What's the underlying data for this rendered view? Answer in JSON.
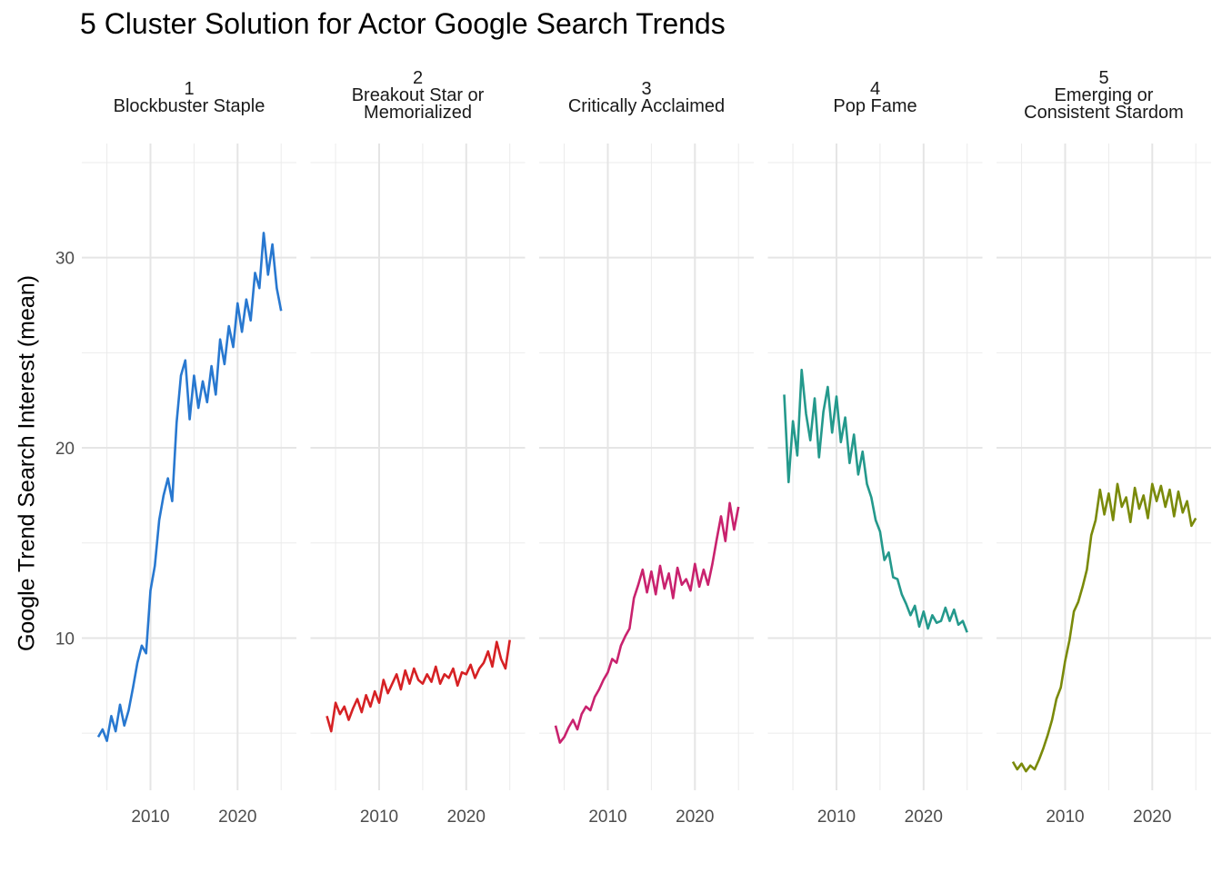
{
  "chart_data": {
    "type": "line",
    "title": "5 Cluster Solution for Actor Google Search Trends",
    "xlabel": "",
    "ylabel": "Google Trend Search Interest (mean)",
    "xlim": [
      2004,
      2025.5
    ],
    "ylim": [
      2,
      36
    ],
    "x_ticks": [
      2010,
      2020
    ],
    "y_ticks": [
      10,
      20,
      30
    ],
    "grid": true,
    "legend": "none",
    "panels": [
      {
        "strip_lines": [
          "1",
          "Blockbuster Staple"
        ],
        "color": "#2878D0",
        "series": {
          "x": [
            2004.0,
            2004.5,
            2005.0,
            2005.5,
            2006.0,
            2006.5,
            2007.0,
            2007.5,
            2008.0,
            2008.5,
            2009.0,
            2009.5,
            2010.0,
            2010.5,
            2011.0,
            2011.5,
            2012.0,
            2012.5,
            2013.0,
            2013.5,
            2014.0,
            2014.5,
            2015.0,
            2015.5,
            2016.0,
            2016.5,
            2017.0,
            2017.5,
            2018.0,
            2018.5,
            2019.0,
            2019.5,
            2020.0,
            2020.5,
            2021.0,
            2021.5,
            2022.0,
            2022.5,
            2023.0,
            2023.5,
            2024.0,
            2024.5,
            2025.0
          ],
          "values": [
            4.8,
            5.2,
            4.6,
            5.9,
            5.1,
            6.5,
            5.4,
            6.2,
            7.4,
            8.7,
            9.6,
            9.2,
            12.5,
            13.8,
            16.2,
            17.5,
            18.4,
            17.2,
            21.3,
            23.8,
            24.6,
            21.5,
            23.8,
            22.1,
            23.5,
            22.4,
            24.3,
            22.8,
            25.7,
            24.4,
            26.4,
            25.3,
            27.6,
            26.1,
            27.8,
            26.7,
            29.2,
            28.4,
            31.3,
            29.1,
            30.7,
            28.4,
            27.2
          ]
        }
      },
      {
        "strip_lines": [
          "2",
          "Breakout Star or",
          "Memorialized"
        ],
        "color": "#D62124",
        "series": {
          "x": [
            2004.0,
            2004.5,
            2005.0,
            2005.5,
            2006.0,
            2006.5,
            2007.0,
            2007.5,
            2008.0,
            2008.5,
            2009.0,
            2009.5,
            2010.0,
            2010.5,
            2011.0,
            2011.5,
            2012.0,
            2012.5,
            2013.0,
            2013.5,
            2014.0,
            2014.5,
            2015.0,
            2015.5,
            2016.0,
            2016.5,
            2017.0,
            2017.5,
            2018.0,
            2018.5,
            2019.0,
            2019.5,
            2020.0,
            2020.5,
            2021.0,
            2021.5,
            2022.0,
            2022.5,
            2023.0,
            2023.5,
            2024.0,
            2024.5,
            2025.0
          ],
          "values": [
            5.9,
            5.1,
            6.6,
            6.0,
            6.4,
            5.7,
            6.3,
            6.8,
            6.1,
            7.0,
            6.4,
            7.2,
            6.6,
            7.8,
            7.1,
            7.6,
            8.1,
            7.3,
            8.3,
            7.6,
            8.4,
            7.8,
            7.6,
            8.1,
            7.7,
            8.5,
            7.6,
            8.1,
            7.9,
            8.4,
            7.5,
            8.2,
            8.1,
            8.6,
            7.9,
            8.4,
            8.7,
            9.3,
            8.5,
            9.8,
            8.9,
            8.4,
            9.9
          ]
        }
      },
      {
        "strip_lines": [
          "3",
          "Critically Acclaimed"
        ],
        "color": "#C9226E",
        "series": {
          "x": [
            2004.0,
            2004.5,
            2005.0,
            2005.5,
            2006.0,
            2006.5,
            2007.0,
            2007.5,
            2008.0,
            2008.5,
            2009.0,
            2009.5,
            2010.0,
            2010.5,
            2011.0,
            2011.5,
            2012.0,
            2012.5,
            2013.0,
            2013.5,
            2014.0,
            2014.5,
            2015.0,
            2015.5,
            2016.0,
            2016.5,
            2017.0,
            2017.5,
            2018.0,
            2018.5,
            2019.0,
            2019.5,
            2020.0,
            2020.5,
            2021.0,
            2021.5,
            2022.0,
            2022.5,
            2023.0,
            2023.5,
            2024.0,
            2024.5,
            2025.0
          ],
          "values": [
            5.4,
            4.5,
            4.8,
            5.3,
            5.7,
            5.2,
            6.0,
            6.4,
            6.2,
            6.9,
            7.3,
            7.8,
            8.2,
            8.9,
            8.7,
            9.6,
            10.1,
            10.5,
            12.1,
            12.8,
            13.6,
            12.4,
            13.5,
            12.3,
            13.8,
            12.6,
            13.4,
            12.1,
            13.7,
            12.8,
            13.1,
            12.5,
            13.9,
            12.7,
            13.6,
            12.8,
            13.9,
            15.2,
            16.4,
            15.1,
            17.1,
            15.7,
            16.9
          ]
        }
      },
      {
        "strip_lines": [
          "4",
          "Pop Fame"
        ],
        "color": "#24998C",
        "series": {
          "x": [
            2004.0,
            2004.5,
            2005.0,
            2005.5,
            2006.0,
            2006.5,
            2007.0,
            2007.5,
            2008.0,
            2008.5,
            2009.0,
            2009.5,
            2010.0,
            2010.5,
            2011.0,
            2011.5,
            2012.0,
            2012.5,
            2013.0,
            2013.5,
            2014.0,
            2014.5,
            2015.0,
            2015.5,
            2016.0,
            2016.5,
            2017.0,
            2017.5,
            2018.0,
            2018.5,
            2019.0,
            2019.5,
            2020.0,
            2020.5,
            2021.0,
            2021.5,
            2022.0,
            2022.5,
            2023.0,
            2023.5,
            2024.0,
            2024.5,
            2025.0
          ],
          "values": [
            22.8,
            18.2,
            21.4,
            19.6,
            24.1,
            21.8,
            20.4,
            22.6,
            19.5,
            21.9,
            23.2,
            20.8,
            22.7,
            20.3,
            21.6,
            19.2,
            20.7,
            18.6,
            19.8,
            18.1,
            17.4,
            16.2,
            15.6,
            14.1,
            14.5,
            13.2,
            13.1,
            12.3,
            11.8,
            11.2,
            11.7,
            10.6,
            11.4,
            10.5,
            11.2,
            10.8,
            10.9,
            11.6,
            10.9,
            11.5,
            10.7,
            10.9,
            10.3
          ]
        }
      },
      {
        "strip_lines": [
          "5",
          "Emerging or",
          "Consistent Stardom"
        ],
        "color": "#7A8A0A",
        "series": {
          "x": [
            2004.0,
            2004.5,
            2005.0,
            2005.5,
            2006.0,
            2006.5,
            2007.0,
            2007.5,
            2008.0,
            2008.5,
            2009.0,
            2009.5,
            2010.0,
            2010.5,
            2011.0,
            2011.5,
            2012.0,
            2012.5,
            2013.0,
            2013.5,
            2014.0,
            2014.5,
            2015.0,
            2015.5,
            2016.0,
            2016.5,
            2017.0,
            2017.5,
            2018.0,
            2018.5,
            2019.0,
            2019.5,
            2020.0,
            2020.5,
            2021.0,
            2021.5,
            2022.0,
            2022.5,
            2023.0,
            2023.5,
            2024.0,
            2024.5,
            2025.0
          ],
          "values": [
            3.5,
            3.1,
            3.4,
            3.0,
            3.3,
            3.1,
            3.6,
            4.2,
            4.9,
            5.7,
            6.8,
            7.4,
            8.8,
            9.9,
            11.4,
            11.9,
            12.7,
            13.6,
            15.4,
            16.2,
            17.8,
            16.5,
            17.6,
            16.2,
            18.1,
            16.9,
            17.4,
            16.1,
            17.9,
            16.8,
            17.5,
            16.3,
            18.1,
            17.2,
            18.0,
            16.9,
            17.8,
            16.4,
            17.7,
            16.6,
            17.2,
            15.9,
            16.3
          ]
        }
      }
    ]
  }
}
